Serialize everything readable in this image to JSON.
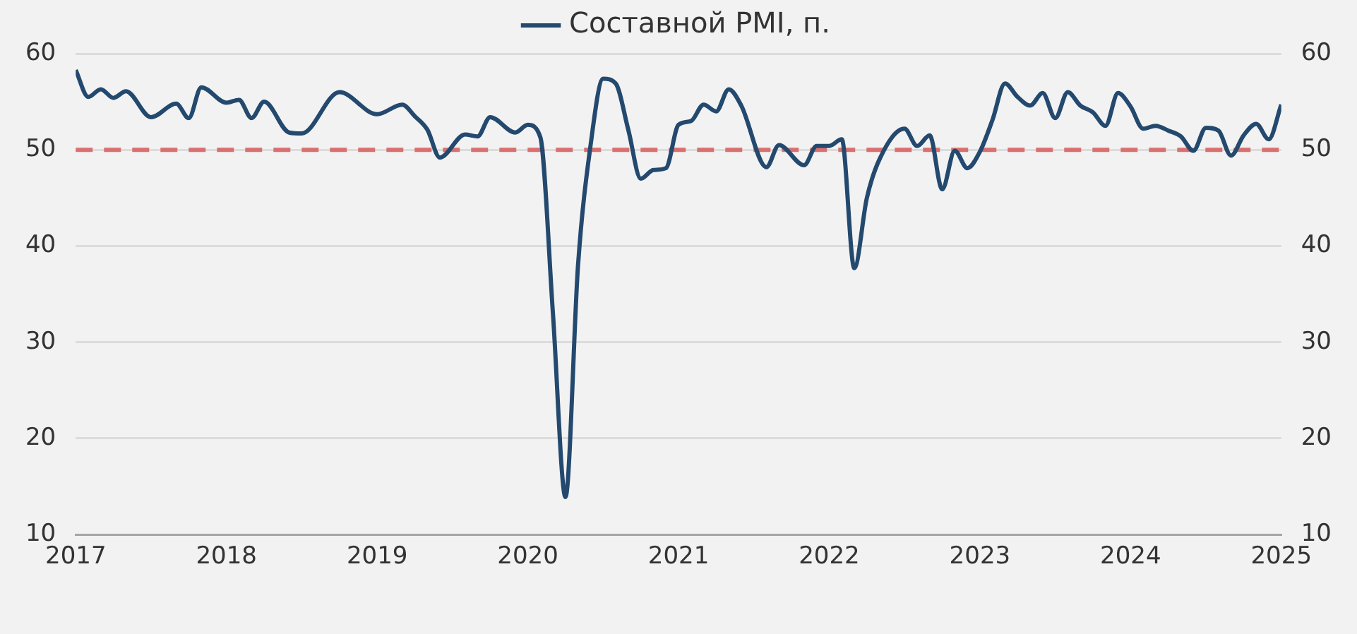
{
  "chart_data": {
    "type": "line",
    "legend": "top",
    "grid": "y",
    "marker": "none",
    "xlim": [
      "2017-01-01",
      "2025-01-01"
    ],
    "xticks": [
      "2017",
      "2018",
      "2019",
      "2020",
      "2021",
      "2022",
      "2023",
      "2024",
      "2025"
    ],
    "ylim": [
      10,
      60
    ],
    "yticks": [
      10,
      20,
      30,
      40,
      50,
      60
    ],
    "y2lim": [
      10,
      60
    ],
    "y2ticks": [
      10,
      20,
      30,
      40,
      50,
      60
    ],
    "ref_lines": [
      {
        "axis": "y",
        "value": 50,
        "color": "#d9706f",
        "line_style": "dashed"
      }
    ],
    "series": [
      {
        "name": "Составной PMI, п.",
        "color": "#24496e",
        "x": [
          "2017-01",
          "2017-02",
          "2017-03",
          "2017-04",
          "2017-05",
          "2017-07",
          "2017-09",
          "2017-10",
          "2017-11",
          "2018-01",
          "2018-02",
          "2018-03",
          "2018-04",
          "2018-06",
          "2018-07",
          "2018-10",
          "2019-01",
          "2019-03",
          "2019-04",
          "2019-05",
          "2019-06",
          "2019-08",
          "2019-09",
          "2019-10",
          "2019-12",
          "2020-01",
          "2020-02",
          "2020-03",
          "2020-04",
          "2020-05",
          "2020-06",
          "2020-07",
          "2020-08",
          "2020-09",
          "2020-10",
          "2020-11",
          "2020-12",
          "2021-01",
          "2021-02",
          "2021-03",
          "2021-04",
          "2021-05",
          "2021-06",
          "2021-08",
          "2021-09",
          "2021-11",
          "2021-12",
          "2022-01",
          "2022-02",
          "2022-03",
          "2022-04",
          "2022-05",
          "2022-07",
          "2022-08",
          "2022-09",
          "2022-10",
          "2022-11",
          "2022-12",
          "2023-01",
          "2023-02",
          "2023-03",
          "2023-04",
          "2023-05",
          "2023-06",
          "2023-07",
          "2023-08",
          "2023-09",
          "2023-10",
          "2023-11",
          "2023-12",
          "2024-01",
          "2024-02",
          "2024-03",
          "2024-04",
          "2024-05",
          "2024-06",
          "2024-07",
          "2024-08",
          "2024-09",
          "2024-10",
          "2024-11",
          "2024-12",
          "2025-01"
        ],
        "values": [
          58.3,
          55.5,
          56.3,
          55.4,
          56.1,
          53.4,
          54.8,
          53.3,
          56.5,
          54.9,
          55.2,
          53.3,
          55.0,
          51.8,
          51.7,
          56.0,
          53.7,
          54.7,
          53.5,
          52.1,
          49.2,
          51.6,
          51.4,
          53.4,
          51.8,
          52.6,
          51.3,
          33,
          13.9,
          38,
          50.5,
          57.4,
          56.9,
          52.1,
          47.0,
          47.9,
          48.1,
          52.6,
          53.0,
          54.7,
          54.0,
          56.3,
          54.6,
          48.2,
          50.5,
          48.4,
          50.4,
          50.4,
          51.1,
          37.7,
          45.0,
          49.0,
          52.2,
          50.4,
          51.5,
          45.9,
          49.9,
          48.1,
          49.8,
          53.1,
          56.9,
          55.5,
          54.6,
          55.9,
          53.3,
          56.0,
          54.6,
          53.9,
          52.5,
          55.9,
          54.5,
          52.2,
          52.5,
          52.0,
          51.4,
          49.9,
          52.3,
          52.0,
          49.4,
          51.5,
          52.7,
          51.1,
          54.7
        ]
      }
    ]
  }
}
